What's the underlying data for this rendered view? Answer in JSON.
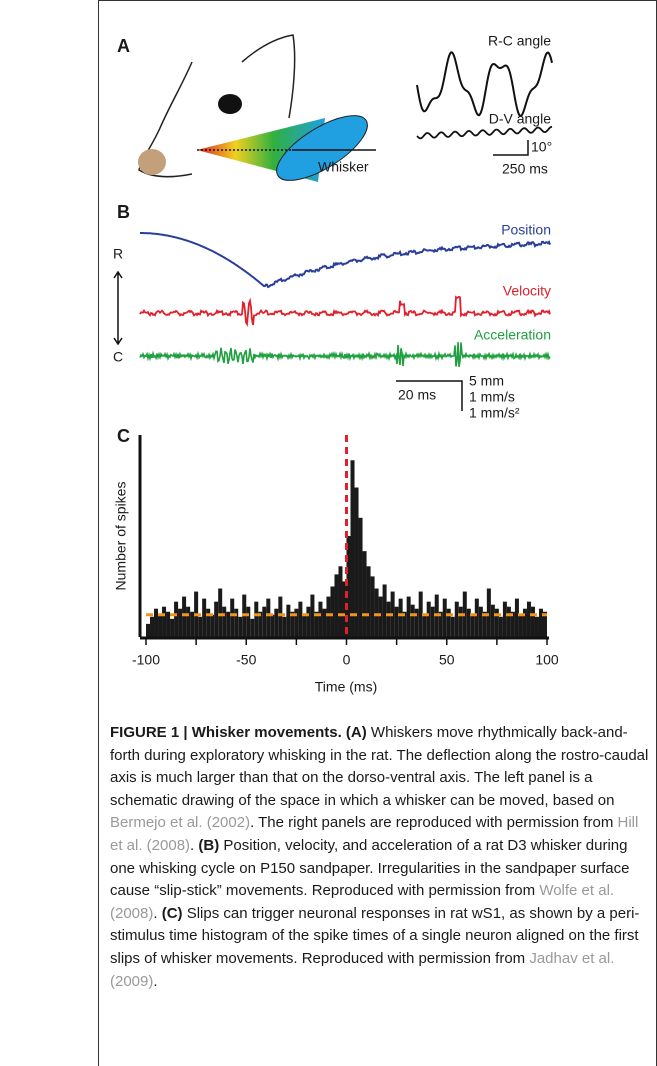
{
  "panel_a": {
    "label": "A",
    "rc_angle": "R-C angle",
    "dv_angle": "D-V angle",
    "scale_angle": "10°",
    "scale_time": "250 ms",
    "whisker": "Whisker"
  },
  "panel_b": {
    "label": "B",
    "position": "Position",
    "velocity": "Velocity",
    "acceleration": "Acceleration",
    "rostral": "R",
    "caudal": "C",
    "scale_time": "20 ms",
    "scale_position": "5 mm",
    "scale_velocity": "1 mm/s",
    "scale_acceleration": "1 mm/s²"
  },
  "chart_data": {
    "type": "histogram",
    "panel_label": "C",
    "ylabel": "Number of spikes",
    "xlabel": "Time (ms)",
    "color": "#1a1a1a",
    "bins": [
      -100,
      -98,
      -96,
      -94,
      -92,
      -90,
      -88,
      -86,
      -84,
      -82,
      -80,
      -78,
      -76,
      -74,
      -72,
      -70,
      -68,
      -66,
      -64,
      -62,
      -60,
      -58,
      -56,
      -54,
      -52,
      -50,
      -48,
      -46,
      -44,
      -42,
      -40,
      -38,
      -36,
      -34,
      -32,
      -30,
      -28,
      -26,
      -24,
      -22,
      -20,
      -18,
      -16,
      -14,
      -12,
      -10,
      -8,
      -6,
      -4,
      -2,
      0,
      2,
      4,
      6,
      8,
      10,
      12,
      14,
      16,
      18,
      20,
      22,
      24,
      26,
      28,
      30,
      32,
      34,
      36,
      38,
      40,
      42,
      44,
      46,
      48,
      50,
      52,
      54,
      56,
      58,
      60,
      62,
      64,
      66,
      68,
      70,
      72,
      74,
      76,
      78,
      80,
      82,
      84,
      86,
      88,
      90,
      92,
      94,
      96,
      98,
      100
    ],
    "values": [
      13,
      20,
      28,
      22,
      30,
      25,
      18,
      35,
      28,
      40,
      30,
      25,
      45,
      20,
      38,
      28,
      22,
      35,
      48,
      30,
      25,
      38,
      28,
      20,
      42,
      30,
      18,
      35,
      25,
      30,
      38,
      22,
      28,
      40,
      20,
      32,
      25,
      28,
      35,
      22,
      30,
      42,
      25,
      35,
      28,
      40,
      50,
      62,
      70,
      55,
      100,
      175,
      148,
      118,
      85,
      70,
      60,
      48,
      40,
      52,
      35,
      45,
      30,
      38,
      25,
      40,
      32,
      28,
      45,
      22,
      35,
      30,
      42,
      25,
      38,
      28,
      20,
      35,
      30,
      45,
      28,
      22,
      38,
      30,
      25,
      48,
      32,
      28,
      20,
      35,
      30,
      25,
      38,
      22,
      28,
      35,
      30,
      20,
      28,
      25
    ],
    "xlim": [
      -100,
      100
    ],
    "ylim": [
      0,
      200
    ],
    "xticks": [
      -100,
      -50,
      0,
      50,
      100
    ],
    "xminorticks": [
      -75,
      -25,
      25,
      75
    ],
    "hlines": [
      {
        "value": 22,
        "color": "#f0961e"
      }
    ],
    "vlines": [
      {
        "value": 0,
        "color": "#e0202a"
      }
    ]
  },
  "caption": {
    "parts": [
      {
        "kind": "bold",
        "text": "FIGURE 1 | Whisker movements. (A)"
      },
      {
        "kind": "plain",
        "text": " Whiskers move rhythmically back-and-forth during exploratory whisking in the rat. The deflection along the rostro-caudal axis is much larger than that on the dorso-ventral axis. The left panel is a schematic drawing of the space in which a whisker can be moved, based on "
      },
      {
        "kind": "link",
        "text": "Bermejo et al. (2002)"
      },
      {
        "kind": "plain",
        "text": ". The right panels are reproduced with permission from "
      },
      {
        "kind": "link",
        "text": "Hill et al. (2008)"
      },
      {
        "kind": "plain",
        "text": ". "
      },
      {
        "kind": "bold",
        "text": "(B)"
      },
      {
        "kind": "plain",
        "text": " Position, velocity, and acceleration of a rat D3 whisker during one whisking cycle on P150 sandpaper. Irregularities in the sandpaper surface cause “slip-stick” movements. Reproduced with permission from "
      },
      {
        "kind": "link",
        "text": "Wolfe et al. (2008)"
      },
      {
        "kind": "plain",
        "text": ". "
      },
      {
        "kind": "bold",
        "text": "(C)"
      },
      {
        "kind": "plain",
        "text": " Slips can trigger neuronal responses in rat wS1, as shown by a peri-stimulus time histogram of the spike times of a single neuron aligned on the first slips of whisker movements. Reproduced with permission from "
      },
      {
        "kind": "link",
        "text": "Jadhav et al. (2009)"
      },
      {
        "kind": "plain",
        "text": "."
      }
    ]
  }
}
